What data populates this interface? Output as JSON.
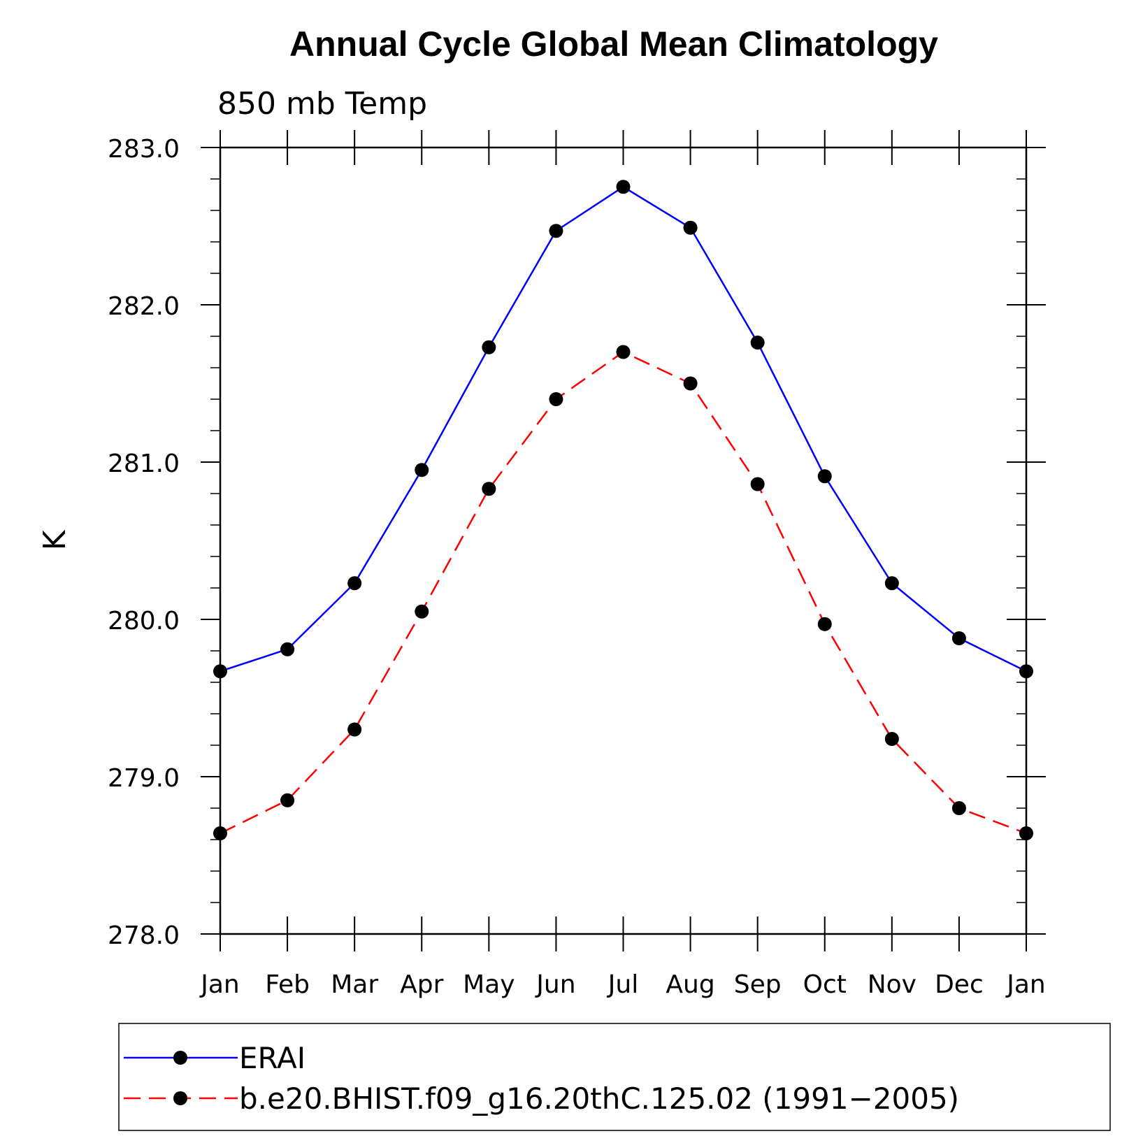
{
  "chart_data": {
    "type": "line",
    "title": "Annual Cycle Global Mean Climatology",
    "subtitle": "850 mb Temp",
    "ylabel": "K",
    "xlabel": "",
    "categories": [
      "Jan",
      "Feb",
      "Mar",
      "Apr",
      "May",
      "Jun",
      "Jul",
      "Aug",
      "Sep",
      "Oct",
      "Nov",
      "Dec",
      "Jan"
    ],
    "ylim": [
      278.0,
      283.0
    ],
    "yticks": [
      "278.0",
      "279.0",
      "280.0",
      "281.0",
      "282.0",
      "283.0"
    ],
    "ytick_values": [
      278.0,
      279.0,
      280.0,
      281.0,
      282.0,
      283.0
    ],
    "y_minor_step": 0.2,
    "grid": false,
    "legend_position": "bottom",
    "series": [
      {
        "name": "ERAI",
        "color": "#0000ff",
        "line_style": "solid",
        "marker": "filled-circle",
        "values": [
          279.67,
          279.81,
          280.23,
          280.95,
          281.73,
          282.47,
          282.75,
          282.49,
          281.76,
          280.91,
          280.23,
          279.88,
          279.67
        ]
      },
      {
        "name": "b.e20.BHIST.f09_g16.20thC.125.02 (1991−2005)",
        "color": "#ff0000",
        "line_style": "dashed",
        "marker": "filled-circle",
        "values": [
          278.64,
          278.85,
          279.3,
          280.05,
          280.83,
          281.4,
          281.7,
          281.5,
          280.86,
          279.97,
          279.24,
          278.8,
          278.64
        ]
      }
    ]
  }
}
